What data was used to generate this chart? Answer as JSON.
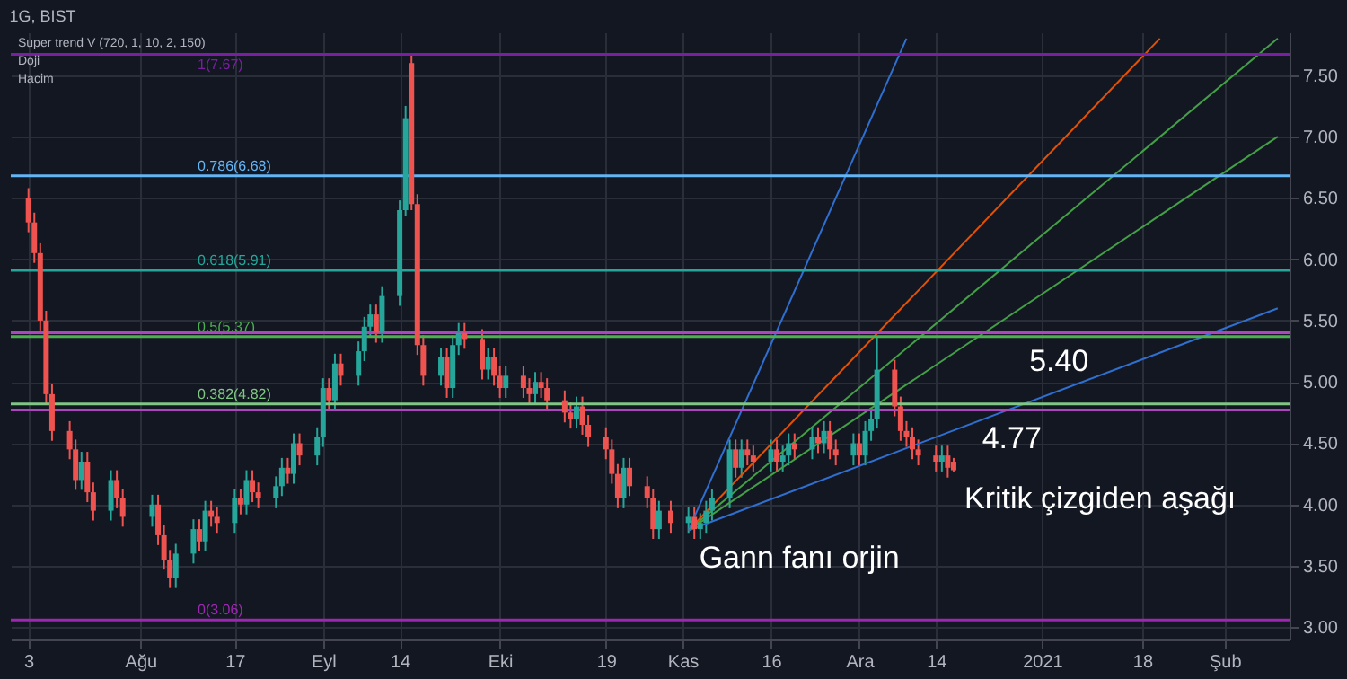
{
  "chart_data": {
    "type": "candlestick",
    "title": "1G, BIST",
    "grid": true,
    "x": [
      "2020-07-13",
      "2020-07-14",
      "2020-07-15",
      "2020-07-16",
      "2020-07-17",
      "2020-07-20",
      "2020-07-21",
      "2020-07-22",
      "2020-07-23",
      "2020-07-24",
      "2020-07-27",
      "2020-07-28",
      "2020-07-29",
      "2020-08-03",
      "2020-08-04",
      "2020-08-05",
      "2020-08-06",
      "2020-08-07",
      "2020-08-10",
      "2020-08-11",
      "2020-08-12",
      "2020-08-13",
      "2020-08-14",
      "2020-08-17",
      "2020-08-18",
      "2020-08-19",
      "2020-08-20",
      "2020-08-21",
      "2020-08-24",
      "2020-08-25",
      "2020-08-26",
      "2020-08-27",
      "2020-08-28",
      "2020-08-31",
      "2020-09-01",
      "2020-09-02",
      "2020-09-03",
      "2020-09-04",
      "2020-09-07",
      "2020-09-08",
      "2020-09-09",
      "2020-09-10",
      "2020-09-11",
      "2020-09-14",
      "2020-09-15",
      "2020-09-16",
      "2020-09-17",
      "2020-09-18",
      "2020-09-21",
      "2020-09-22",
      "2020-09-23",
      "2020-09-24",
      "2020-09-25",
      "2020-09-28",
      "2020-09-29",
      "2020-09-30",
      "2020-10-01",
      "2020-10-02",
      "2020-10-05",
      "2020-10-06",
      "2020-10-07",
      "2020-10-08",
      "2020-10-09",
      "2020-10-12",
      "2020-10-13",
      "2020-10-14",
      "2020-10-15",
      "2020-10-16",
      "2020-10-19",
      "2020-10-20",
      "2020-10-21",
      "2020-10-22",
      "2020-10-23",
      "2020-10-26",
      "2020-10-27",
      "2020-10-28",
      "2020-10-30",
      "2020-11-02",
      "2020-11-03",
      "2020-11-04",
      "2020-11-05",
      "2020-11-06",
      "2020-11-09",
      "2020-11-10",
      "2020-11-11",
      "2020-11-12",
      "2020-11-13",
      "2020-11-16",
      "2020-11-17",
      "2020-11-18",
      "2020-11-19",
      "2020-11-20",
      "2020-11-23",
      "2020-11-24",
      "2020-11-25",
      "2020-11-26",
      "2020-11-27",
      "2020-11-30",
      "2020-12-01",
      "2020-12-02",
      "2020-12-03",
      "2020-12-04",
      "2020-12-07",
      "2020-12-08",
      "2020-12-09",
      "2020-12-10",
      "2020-12-11",
      "2020-12-14",
      "2020-12-15",
      "2020-12-16",
      "2020-12-17"
    ],
    "ohlc": [
      [
        6.5,
        6.58,
        6.22,
        6.3
      ],
      [
        6.3,
        6.38,
        5.97,
        6.05
      ],
      [
        6.05,
        6.13,
        5.42,
        5.5
      ],
      [
        5.5,
        5.58,
        4.82,
        4.9
      ],
      [
        4.9,
        4.98,
        4.52,
        4.6
      ],
      [
        4.6,
        4.68,
        4.37,
        4.45
      ],
      [
        4.45,
        4.53,
        4.12,
        4.2
      ],
      [
        4.2,
        4.43,
        4.12,
        4.35
      ],
      [
        4.35,
        4.43,
        4.02,
        4.1
      ],
      [
        4.1,
        4.18,
        3.87,
        3.95
      ],
      [
        3.95,
        4.28,
        3.87,
        4.2
      ],
      [
        4.2,
        4.28,
        3.97,
        4.05
      ],
      [
        4.05,
        4.13,
        3.82,
        3.9
      ],
      [
        3.9,
        4.08,
        3.82,
        4.0
      ],
      [
        4.0,
        4.08,
        3.67,
        3.75
      ],
      [
        3.75,
        3.83,
        3.47,
        3.55
      ],
      [
        3.55,
        3.63,
        3.32,
        3.4
      ],
      [
        3.4,
        3.68,
        3.32,
        3.6
      ],
      [
        3.6,
        3.88,
        3.52,
        3.8
      ],
      [
        3.8,
        3.88,
        3.62,
        3.7
      ],
      [
        3.7,
        4.03,
        3.62,
        3.95
      ],
      [
        3.95,
        4.03,
        3.82,
        3.9
      ],
      [
        3.9,
        3.98,
        3.77,
        3.85
      ],
      [
        3.85,
        4.13,
        3.77,
        4.05
      ],
      [
        4.05,
        4.13,
        3.92,
        4.0
      ],
      [
        4.0,
        4.28,
        3.92,
        4.2
      ],
      [
        4.2,
        4.28,
        4.02,
        4.1
      ],
      [
        4.1,
        4.18,
        3.97,
        4.05
      ],
      [
        4.05,
        4.23,
        3.97,
        4.15
      ],
      [
        4.15,
        4.38,
        4.07,
        4.3
      ],
      [
        4.3,
        4.38,
        4.17,
        4.25
      ],
      [
        4.25,
        4.58,
        4.17,
        4.5
      ],
      [
        4.5,
        4.58,
        4.32,
        4.4
      ],
      [
        4.4,
        4.63,
        4.32,
        4.55
      ],
      [
        4.55,
        5.03,
        4.47,
        4.95
      ],
      [
        4.95,
        5.03,
        4.77,
        4.85
      ],
      [
        4.85,
        5.23,
        4.77,
        5.15
      ],
      [
        5.15,
        5.23,
        4.97,
        5.05
      ],
      [
        5.05,
        5.33,
        4.97,
        5.25
      ],
      [
        5.25,
        5.53,
        5.17,
        5.45
      ],
      [
        5.45,
        5.63,
        5.37,
        5.55
      ],
      [
        5.55,
        5.63,
        5.32,
        5.4
      ],
      [
        5.4,
        5.78,
        5.32,
        5.7
      ],
      [
        5.7,
        6.48,
        5.62,
        6.4
      ],
      [
        6.4,
        7.25,
        6.35,
        7.15
      ],
      [
        7.6,
        7.67,
        6.4,
        6.45
      ],
      [
        6.45,
        6.53,
        5.22,
        5.3
      ],
      [
        5.3,
        5.38,
        4.97,
        5.05
      ],
      [
        5.05,
        5.28,
        4.97,
        5.2
      ],
      [
        5.2,
        5.28,
        4.87,
        4.95
      ],
      [
        4.95,
        5.38,
        4.87,
        5.3
      ],
      [
        5.3,
        5.48,
        5.22,
        5.4
      ],
      [
        5.4,
        5.48,
        5.27,
        5.35
      ],
      [
        5.35,
        5.43,
        5.02,
        5.1
      ],
      [
        5.1,
        5.28,
        5.02,
        5.2
      ],
      [
        5.2,
        5.28,
        4.97,
        5.05
      ],
      [
        5.05,
        5.13,
        4.87,
        4.95
      ],
      [
        4.95,
        5.13,
        4.87,
        5.05
      ],
      [
        5.05,
        5.13,
        4.87,
        4.95
      ],
      [
        4.95,
        5.03,
        4.82,
        4.9
      ],
      [
        4.9,
        5.08,
        4.82,
        5.0
      ],
      [
        5.0,
        5.08,
        4.87,
        4.95
      ],
      [
        4.95,
        5.03,
        4.77,
        4.85
      ],
      [
        4.85,
        4.93,
        4.67,
        4.75
      ],
      [
        4.75,
        4.83,
        4.62,
        4.7
      ],
      [
        4.7,
        4.88,
        4.62,
        4.8
      ],
      [
        4.8,
        4.88,
        4.57,
        4.65
      ],
      [
        4.65,
        4.73,
        4.47,
        4.55
      ],
      [
        4.55,
        4.63,
        4.37,
        4.45
      ],
      [
        4.45,
        4.53,
        4.17,
        4.25
      ],
      [
        4.25,
        4.33,
        3.97,
        4.05
      ],
      [
        4.05,
        4.38,
        3.97,
        4.3
      ],
      [
        4.3,
        4.38,
        4.07,
        4.15
      ],
      [
        4.15,
        4.23,
        3.97,
        4.05
      ],
      [
        4.05,
        4.13,
        3.72,
        3.8
      ],
      [
        3.8,
        4.03,
        3.72,
        3.95
      ],
      [
        3.95,
        4.03,
        3.77,
        3.85
      ],
      [
        3.85,
        3.98,
        3.77,
        3.9
      ],
      [
        3.9,
        3.98,
        3.72,
        3.8
      ],
      [
        3.8,
        3.93,
        3.72,
        3.85
      ],
      [
        3.85,
        4.03,
        3.77,
        3.95
      ],
      [
        3.95,
        4.13,
        3.87,
        4.05
      ],
      [
        4.05,
        4.53,
        3.97,
        4.45
      ],
      [
        4.45,
        4.53,
        4.22,
        4.3
      ],
      [
        4.3,
        4.53,
        4.22,
        4.45
      ],
      [
        4.45,
        4.53,
        4.32,
        4.4
      ],
      [
        4.4,
        4.48,
        4.27,
        4.35
      ],
      [
        4.35,
        4.53,
        4.27,
        4.45
      ],
      [
        4.45,
        4.53,
        4.27,
        4.35
      ],
      [
        4.35,
        4.48,
        4.27,
        4.4
      ],
      [
        4.4,
        4.58,
        4.32,
        4.5
      ],
      [
        4.5,
        4.58,
        4.37,
        4.45
      ],
      [
        4.45,
        4.63,
        4.37,
        4.55
      ],
      [
        4.55,
        4.63,
        4.42,
        4.5
      ],
      [
        4.5,
        4.68,
        4.42,
        4.6
      ],
      [
        4.6,
        4.68,
        4.37,
        4.45
      ],
      [
        4.45,
        4.53,
        4.32,
        4.4
      ],
      [
        4.4,
        4.58,
        4.32,
        4.5
      ],
      [
        4.5,
        4.58,
        4.32,
        4.4
      ],
      [
        4.4,
        4.68,
        4.32,
        4.6
      ],
      [
        4.6,
        4.78,
        4.52,
        4.7
      ],
      [
        4.7,
        5.37,
        4.62,
        5.1
      ],
      [
        5.1,
        5.18,
        4.72,
        4.8
      ],
      [
        4.8,
        4.88,
        4.52,
        4.6
      ],
      [
        4.6,
        4.68,
        4.47,
        4.55
      ],
      [
        4.55,
        4.63,
        4.37,
        4.45
      ],
      [
        4.45,
        4.53,
        4.32,
        4.4
      ],
      [
        4.4,
        4.48,
        4.27,
        4.35
      ],
      [
        4.35,
        4.48,
        4.27,
        4.4
      ],
      [
        4.4,
        4.48,
        4.22,
        4.3
      ],
      [
        4.35,
        4.38,
        4.27,
        4.28
      ]
    ],
    "series": [
      {
        "type": "line",
        "color": "#2f6fd0",
        "x": [
          "2020-11-02",
          "2020-12-09"
        ],
        "values": [
          3.79,
          7.8
        ]
      },
      {
        "type": "line",
        "color": "#43a047",
        "x": [
          "2020-11-02",
          "2021-02-10"
        ],
        "values": [
          3.79,
          7.8
        ]
      },
      {
        "type": "line",
        "color": "#e65100",
        "x": [
          "2020-11-02",
          "2021-01-21"
        ],
        "values": [
          3.79,
          7.8
        ]
      },
      {
        "type": "line",
        "color": "#43a047",
        "x": [
          "2020-11-02",
          "2021-02-10"
        ],
        "values": [
          3.79,
          7.0
        ]
      },
      {
        "type": "line",
        "color": "#2f6fd0",
        "x": [
          "2020-11-02",
          "2021-02-10"
        ],
        "values": [
          3.79,
          5.6
        ]
      }
    ],
    "ref_lines": [
      {
        "axis": "y",
        "value": 7.67,
        "label": "1(7.67)",
        "color": "#7b1fa2"
      },
      {
        "axis": "y",
        "value": 6.68,
        "label": "0.786(6.68)",
        "color": "#64b5f6"
      },
      {
        "axis": "y",
        "value": 5.91,
        "label": "0.618(5.91)",
        "color": "#26a69a"
      },
      {
        "axis": "y",
        "value": 5.37,
        "label": "0.5(5.37)",
        "color": "#4caf50"
      },
      {
        "axis": "y",
        "value": 4.82,
        "label": "0.382(4.82)",
        "color": "#81c784"
      },
      {
        "axis": "y",
        "value": 3.06,
        "label": "0(3.06)",
        "color": "#9c27b0"
      },
      {
        "axis": "y",
        "value": 5.4,
        "color": "#ab47bc"
      },
      {
        "axis": "y",
        "value": 4.77,
        "color": "#ab47bc"
      }
    ],
    "annotations": [
      "Super trend V (720, 1, 10, 2, 150)",
      "Doji",
      "Hacim",
      {
        "text": "5.40",
        "x": "2020-12-28",
        "y": 5.4
      },
      {
        "text": "4.77",
        "x": "2020-12-20",
        "y": 4.77
      },
      {
        "text": "Gann fanı orjin",
        "x": "2020-11-02",
        "y": 3.79
      },
      {
        "text": "Kritik çizgiden aşağı",
        "x": "2020-12-17",
        "y": 4.28
      }
    ],
    "xlim": [
      "2020-07-10",
      "2021-02-12"
    ],
    "xticks": [
      {
        "value": "2020-07-13",
        "label": "3"
      },
      {
        "value": "2020-08-01",
        "label": "Ağu"
      },
      {
        "value": "2020-08-17",
        "label": "17"
      },
      {
        "value": "2020-09-01",
        "label": "Eyl"
      },
      {
        "value": "2020-09-14",
        "label": "14"
      },
      {
        "value": "2020-10-01",
        "label": "Eki"
      },
      {
        "value": "2020-10-19",
        "label": "19"
      },
      {
        "value": "2020-11-01",
        "label": "Kas"
      },
      {
        "value": "2020-11-16",
        "label": "16"
      },
      {
        "value": "2020-12-01",
        "label": "Ara"
      },
      {
        "value": "2020-12-14",
        "label": "14"
      },
      {
        "value": "2021-01-01",
        "label": "2021"
      },
      {
        "value": "2021-01-18",
        "label": "18"
      },
      {
        "value": "2021-02-01",
        "label": "Şub"
      }
    ],
    "ylim": [
      2.9,
      7.85
    ],
    "yticks": [
      {
        "value": 3,
        "label": "3.00"
      },
      {
        "value": 3.5,
        "label": "3.50"
      },
      {
        "value": 4,
        "label": "4.00"
      },
      {
        "value": 4.5,
        "label": "4.50"
      },
      {
        "value": 5,
        "label": "5.00"
      },
      {
        "value": 5.5,
        "label": "5.50"
      },
      {
        "value": 6,
        "label": "6.00"
      },
      {
        "value": 6.5,
        "label": "6.50"
      },
      {
        "value": 7,
        "label": "7.00"
      },
      {
        "value": 7.5,
        "label": "7.50"
      }
    ]
  }
}
